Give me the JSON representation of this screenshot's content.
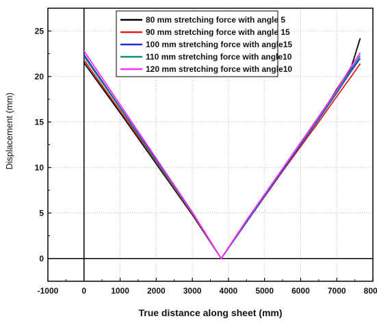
{
  "chart_data": {
    "type": "line",
    "title": "",
    "xlabel": "True distance along sheet  (mm)",
    "ylabel": "Displacement (mm)",
    "xlim": [
      -1000,
      8000
    ],
    "ylim": [
      -2.5,
      27.5
    ],
    "x_ticks": [
      -1000,
      0,
      1000,
      2000,
      3000,
      4000,
      5000,
      6000,
      7000,
      8000
    ],
    "y_ticks": [
      0,
      5,
      10,
      15,
      20,
      25
    ],
    "x_tick_labels": [
      "-1000",
      "0",
      "1000",
      "2000",
      "3000",
      "4000",
      "5000",
      "6000",
      "7000",
      "8000"
    ],
    "y_tick_labels": [
      "0",
      "5",
      "10",
      "15",
      "20",
      "25"
    ],
    "grid": true,
    "legend_position": "top-center",
    "series": [
      {
        "name": "80 mm stretching force with angle 5",
        "color": "#000000",
        "x": [
          0,
          1000,
          2000,
          3000,
          3800,
          4500,
          5500,
          6500,
          7000,
          7400,
          7650
        ],
        "y": [
          21.5,
          16.0,
          10.4,
          4.8,
          0.0,
          4.2,
          9.8,
          15.4,
          18.6,
          21.0,
          24.2
        ]
      },
      {
        "name": "90 mm stretching force with angle 15",
        "color": "#e31a1c",
        "x": [
          0,
          1000,
          2000,
          3000,
          3800,
          4500,
          5500,
          6500,
          7000,
          7400,
          7650
        ],
        "y": [
          21.8,
          16.2,
          10.6,
          4.9,
          0.0,
          4.0,
          9.6,
          15.0,
          17.8,
          20.0,
          21.4
        ]
      },
      {
        "name": "100 mm stretching force with angle15",
        "color": "#1f2be0",
        "x": [
          0,
          1000,
          2000,
          3000,
          3800,
          4500,
          5500,
          6500,
          7000,
          7400,
          7650
        ],
        "y": [
          22.4,
          16.6,
          10.8,
          5.0,
          0.0,
          4.0,
          9.7,
          15.3,
          18.2,
          20.6,
          22.0
        ]
      },
      {
        "name": "110 mm stretching force with angle10",
        "color": "#178a75",
        "x": [
          0,
          1000,
          2000,
          3000,
          3800,
          4500,
          5500,
          6500,
          7000,
          7400,
          7650
        ],
        "y": [
          22.2,
          16.5,
          10.7,
          5.0,
          0.0,
          4.1,
          9.8,
          15.4,
          18.3,
          20.8,
          22.3
        ]
      },
      {
        "name": "120 mm stretching force with angle10",
        "color": "#ff29ff",
        "x": [
          0,
          1000,
          2000,
          3000,
          3800,
          4500,
          5500,
          6500,
          7000,
          7400,
          7650
        ],
        "y": [
          22.8,
          16.9,
          11.0,
          5.1,
          0.0,
          4.2,
          9.9,
          15.6,
          18.5,
          21.1,
          22.6
        ]
      }
    ]
  }
}
